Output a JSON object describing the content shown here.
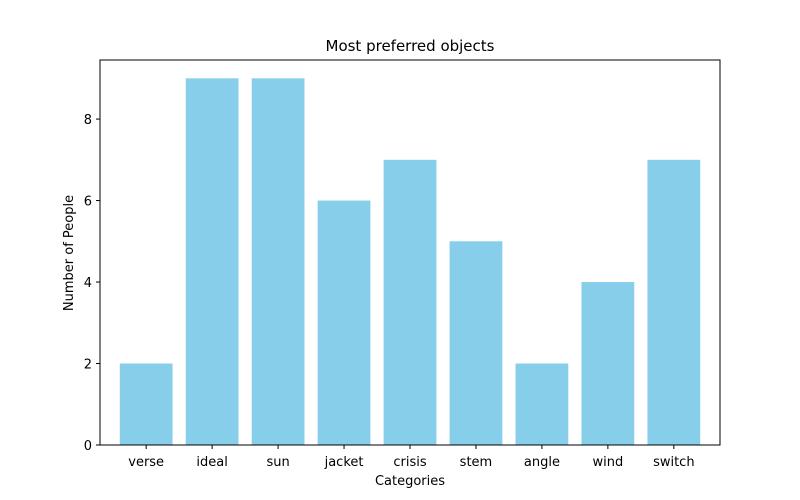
{
  "chart_data": {
    "type": "bar",
    "title": "Most preferred objects",
    "xlabel": "Categories",
    "ylabel": "Number of People",
    "categories": [
      "verse",
      "ideal",
      "sun",
      "jacket",
      "crisis",
      "stem",
      "angle",
      "wind",
      "switch"
    ],
    "values": [
      2,
      9,
      9,
      6,
      7,
      5,
      2,
      4,
      7
    ],
    "ylim": [
      0,
      9.45
    ],
    "yticks": [
      0,
      2,
      4,
      6,
      8
    ],
    "grid": false,
    "bar_color": "#87ceeb"
  }
}
